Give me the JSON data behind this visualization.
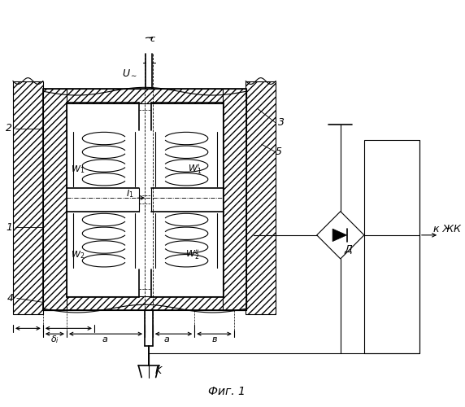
{
  "title": "Фиг. 1",
  "bg_color": "#ffffff",
  "line_color": "#000000"
}
